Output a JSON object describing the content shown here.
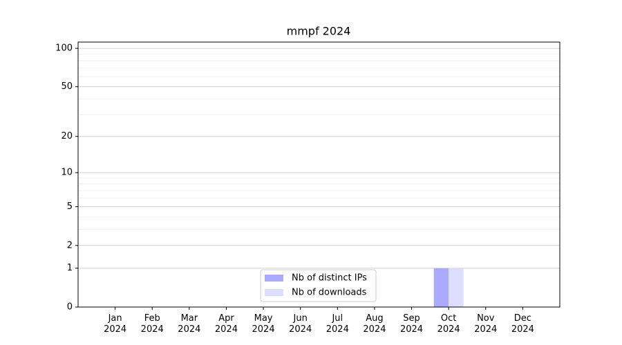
{
  "chart_data": {
    "type": "bar",
    "title": "mmpf 2024",
    "categories": [
      "Jan\n2024",
      "Feb\n2024",
      "Mar\n2024",
      "Apr\n2024",
      "May\n2024",
      "Jun\n2024",
      "Jul\n2024",
      "Aug\n2024",
      "Sep\n2024",
      "Oct\n2024",
      "Nov\n2024",
      "Dec\n2024"
    ],
    "series": [
      {
        "name": "Nb of distinct IPs",
        "color": "#aaaaff",
        "values": [
          0,
          0,
          0,
          0,
          0,
          0,
          0,
          0,
          0,
          1,
          0,
          0
        ]
      },
      {
        "name": "Nb of downloads",
        "color": "#ddddff",
        "values": [
          0,
          0,
          0,
          0,
          0,
          0,
          0,
          0,
          0,
          1,
          0,
          0
        ]
      }
    ],
    "yscale": "log1p",
    "ylim": [
      0,
      112
    ],
    "yticks": [
      0,
      1,
      2,
      5,
      10,
      20,
      50,
      100
    ],
    "minor_yticks": [
      3,
      4,
      6,
      7,
      8,
      9,
      30,
      40,
      60,
      70,
      80,
      90
    ],
    "grid": true,
    "legend": "lower center"
  }
}
